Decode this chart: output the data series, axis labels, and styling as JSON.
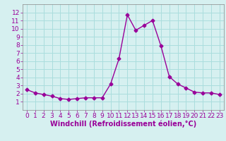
{
  "x": [
    0,
    1,
    2,
    3,
    4,
    5,
    6,
    7,
    8,
    9,
    10,
    11,
    12,
    13,
    14,
    15,
    16,
    17,
    18,
    19,
    20,
    21,
    22,
    23
  ],
  "y": [
    2.5,
    2.1,
    1.9,
    1.7,
    1.4,
    1.3,
    1.4,
    1.5,
    1.5,
    1.5,
    3.2,
    6.3,
    11.7,
    9.8,
    10.4,
    11.0,
    7.9,
    4.1,
    3.2,
    2.7,
    2.2,
    2.1,
    2.1,
    1.9
  ],
  "line_color": "#990099",
  "marker": "D",
  "marker_size": 2.5,
  "bg_color": "#d6f0f0",
  "grid_color": "#aadddd",
  "xlabel": "Windchill (Refroidissement éolien,°C)",
  "xlim": [
    -0.5,
    23.5
  ],
  "ylim": [
    0,
    13
  ],
  "yticks": [
    1,
    2,
    3,
    4,
    5,
    6,
    7,
    8,
    9,
    10,
    11,
    12
  ],
  "xticks": [
    0,
    1,
    2,
    3,
    4,
    5,
    6,
    7,
    8,
    9,
    10,
    11,
    12,
    13,
    14,
    15,
    16,
    17,
    18,
    19,
    20,
    21,
    22,
    23
  ],
  "tick_fontsize": 6.5,
  "xlabel_fontsize": 7.0,
  "xlabel_color": "#990099",
  "tick_color": "#990099"
}
